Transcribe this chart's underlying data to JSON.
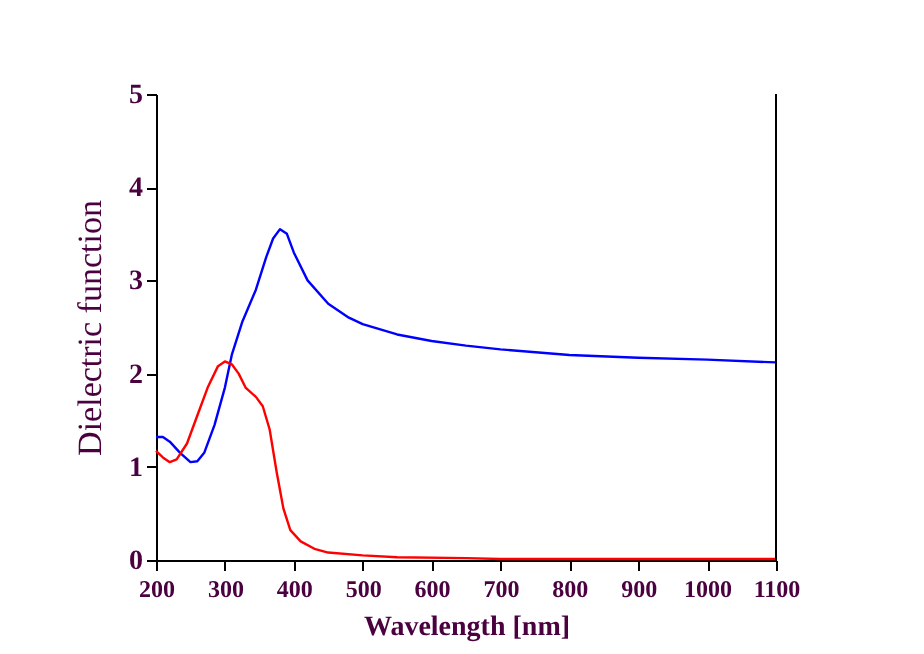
{
  "chart_data": {
    "type": "line",
    "xlabel": "Wavelength [nm]",
    "ylabel": "Dielectric function",
    "xlim": [
      200,
      1100
    ],
    "xticks": [
      200,
      300,
      400,
      500,
      600,
      700,
      800,
      900,
      1000,
      1100
    ],
    "ylim": [
      0,
      5
    ],
    "yticks": [
      0,
      1,
      2,
      3,
      4,
      5
    ],
    "grid": false,
    "legend": false,
    "line_style": "solid",
    "marker": "none",
    "series": [
      {
        "color": "#0000ff",
        "x": [
          200,
          210,
          220,
          235,
          250,
          260,
          270,
          285,
          300,
          310,
          325,
          345,
          360,
          370,
          380,
          390,
          400,
          420,
          450,
          480,
          500,
          550,
          600,
          650,
          700,
          800,
          900,
          1000,
          1100
        ],
        "values": [
          1.32,
          1.32,
          1.27,
          1.15,
          1.05,
          1.06,
          1.15,
          1.45,
          1.85,
          2.2,
          2.55,
          2.9,
          3.25,
          3.45,
          3.55,
          3.5,
          3.3,
          3.0,
          2.75,
          2.6,
          2.53,
          2.42,
          2.35,
          2.3,
          2.26,
          2.2,
          2.17,
          2.15,
          2.12
        ]
      },
      {
        "color": "#ff0000",
        "x": [
          200,
          210,
          220,
          230,
          245,
          260,
          275,
          290,
          300,
          310,
          320,
          330,
          345,
          355,
          365,
          375,
          385,
          395,
          410,
          430,
          450,
          500,
          550,
          650,
          700,
          1100
        ],
        "values": [
          1.17,
          1.1,
          1.05,
          1.08,
          1.25,
          1.55,
          1.85,
          2.08,
          2.13,
          2.1,
          2.0,
          1.85,
          1.75,
          1.65,
          1.4,
          0.95,
          0.55,
          0.32,
          0.2,
          0.12,
          0.08,
          0.05,
          0.03,
          0.02,
          0.01,
          0.01
        ]
      }
    ]
  }
}
